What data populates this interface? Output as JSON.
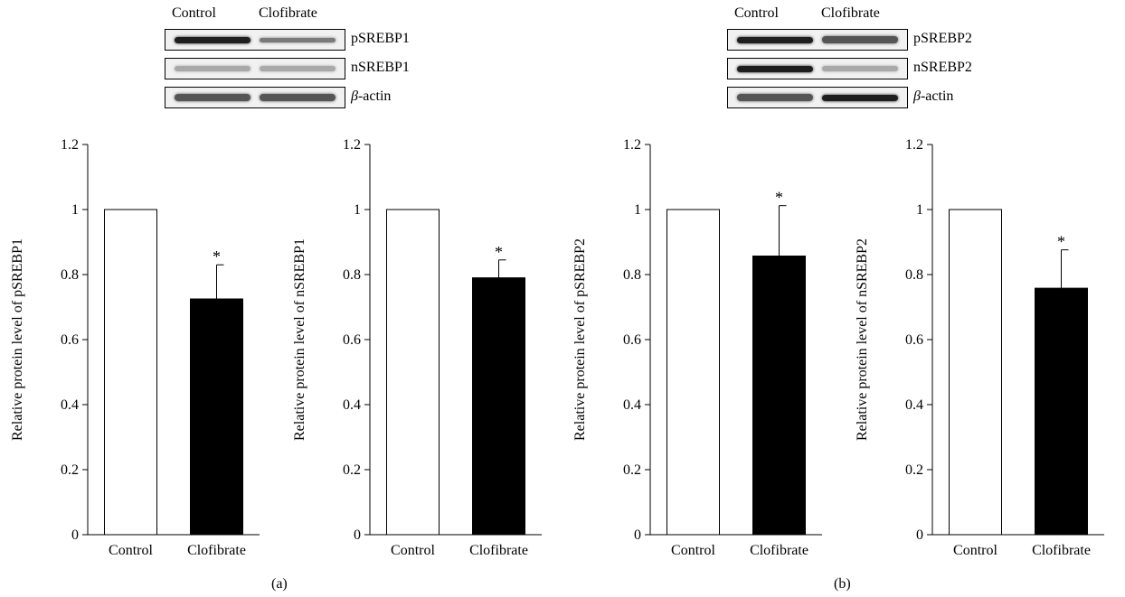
{
  "panels": [
    {
      "letter": "(a)",
      "blot": {
        "lanes": [
          "Control",
          "Clofibrate"
        ],
        "rows": [
          {
            "label": "pSREBP1",
            "italic_prefix": "",
            "bands": [
              "strong",
              "weak"
            ]
          },
          {
            "label": "nSREBP1",
            "italic_prefix": "",
            "bands": [
              "faint",
              "faint"
            ]
          },
          {
            "label": "-actin",
            "italic_prefix": "β",
            "bands": [
              "medium",
              "medium"
            ]
          }
        ]
      }
    },
    {
      "letter": "(b)",
      "blot": {
        "lanes": [
          "Control",
          "Clofibrate"
        ],
        "rows": [
          {
            "label": "pSREBP2",
            "italic_prefix": "",
            "bands": [
              "strong",
              "medium"
            ]
          },
          {
            "label": "nSREBP2",
            "italic_prefix": "",
            "bands": [
              "strong",
              "faint"
            ]
          },
          {
            "label": "-actin",
            "italic_prefix": "β",
            "bands": [
              "medium",
              "strong"
            ]
          }
        ]
      }
    }
  ],
  "chart_data": [
    {
      "type": "bar",
      "categories": [
        "Control",
        "Clofibrate"
      ],
      "values": [
        1.0,
        0.725
      ],
      "errors": [
        0.0,
        0.105
      ],
      "significance": [
        "",
        "*"
      ],
      "bar_colors": [
        "#ffffff",
        "#000000"
      ],
      "ylabel": "Relative protein level of pSREBP1",
      "ylim": [
        0,
        1.2
      ],
      "yticks": [
        "0",
        "0.2",
        "0.4",
        "0.6",
        "0.8",
        "1",
        "1.2"
      ]
    },
    {
      "type": "bar",
      "categories": [
        "Control",
        "Clofibrate"
      ],
      "values": [
        1.0,
        0.79
      ],
      "errors": [
        0.0,
        0.055
      ],
      "significance": [
        "",
        "*"
      ],
      "bar_colors": [
        "#ffffff",
        "#000000"
      ],
      "ylabel": "Relative protein level of nSREBP1",
      "ylim": [
        0,
        1.2
      ],
      "yticks": [
        "0",
        "0.2",
        "0.4",
        "0.6",
        "0.8",
        "1",
        "1.2"
      ]
    },
    {
      "type": "bar",
      "categories": [
        "Control",
        "Clofibrate"
      ],
      "values": [
        1.0,
        0.857
      ],
      "errors": [
        0.0,
        0.155
      ],
      "significance": [
        "",
        "*"
      ],
      "bar_colors": [
        "#ffffff",
        "#000000"
      ],
      "ylabel": "Relative protein level of pSREBP2",
      "ylim": [
        0,
        1.2
      ],
      "yticks": [
        "0",
        "0.2",
        "0.4",
        "0.6",
        "0.8",
        "1",
        "1.2"
      ]
    },
    {
      "type": "bar",
      "categories": [
        "Control",
        "Clofibrate"
      ],
      "values": [
        1.0,
        0.758
      ],
      "errors": [
        0.0,
        0.118
      ],
      "significance": [
        "",
        "*"
      ],
      "bar_colors": [
        "#ffffff",
        "#000000"
      ],
      "ylabel": "Relative protein level of nSREBP2",
      "ylim": [
        0,
        1.2
      ],
      "yticks": [
        "0",
        "0.2",
        "0.4",
        "0.6",
        "0.8",
        "1",
        "1.2"
      ]
    }
  ]
}
